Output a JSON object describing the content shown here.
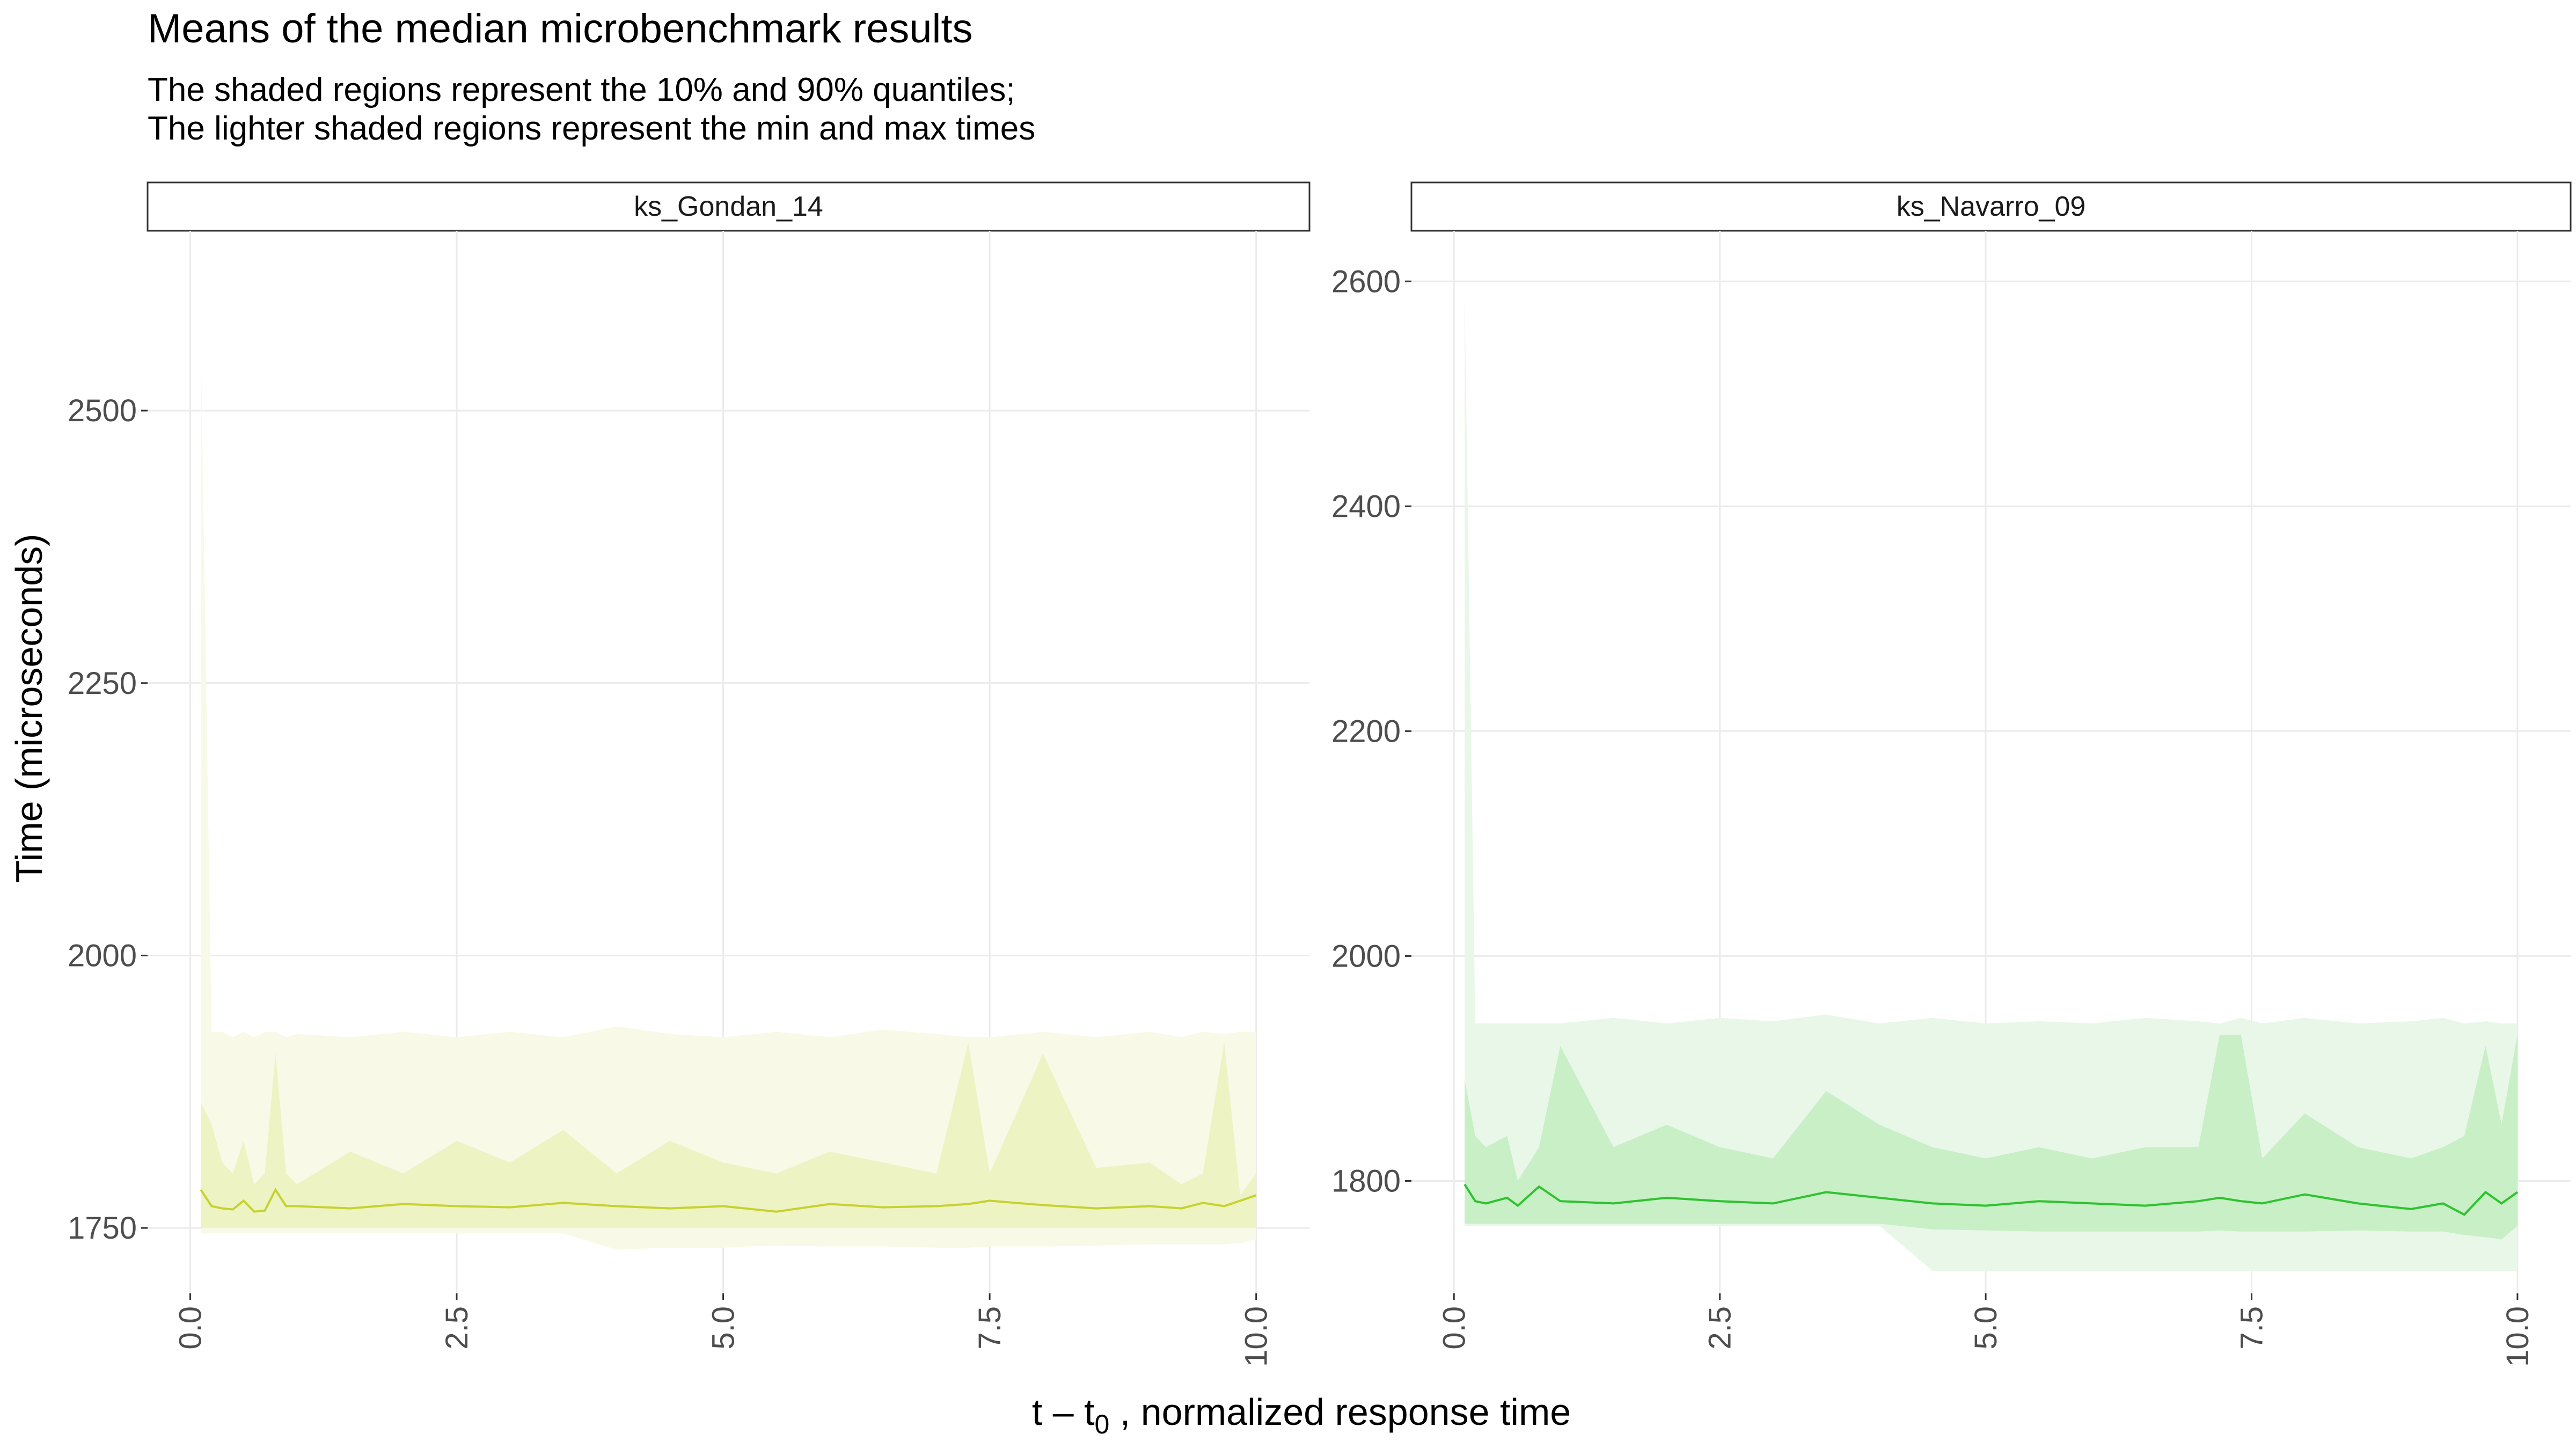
{
  "title": "Means of the median microbenchmark results",
  "subtitle_lines": [
    "The shaded regions represent the 10% and 90% quantiles;",
    "The lighter shaded regions represent the min and max times"
  ],
  "x_axis_label_prefix": "t – t",
  "x_axis_label_subscript": "0",
  "x_axis_label_suffix": " , normalized response time",
  "chart_data": {
    "type": "area",
    "ylabel": "Time (microseconds)",
    "xlabel": "t – t0 , normalized response time",
    "grid": true,
    "legend": "none",
    "facets": [
      {
        "strip": "ks_Gondan_14",
        "color_line": "#c6d22e",
        "color_band_inner": "#eef3c4",
        "color_band_outer": "#f8f9e6",
        "xlim": [
          -0.4,
          10.5
        ],
        "ylim": [
          1690,
          2665
        ],
        "xticks": [
          0,
          2.5,
          5,
          7.5,
          10
        ],
        "xtick_labels": [
          "0.0",
          "2.5",
          "5.0",
          "7.5",
          "10.0"
        ],
        "yticks": [
          1750,
          2000,
          2250,
          2500
        ],
        "ytick_labels": [
          "1750",
          "2000",
          "2250",
          "2500"
        ],
        "x": [
          0.1,
          0.2,
          0.3,
          0.4,
          0.5,
          0.6,
          0.7,
          0.8,
          0.9,
          1.0,
          1.5,
          2.0,
          2.5,
          3.0,
          3.5,
          4.0,
          4.5,
          5.0,
          5.5,
          6.0,
          6.5,
          7.0,
          7.3,
          7.5,
          8.0,
          8.5,
          9.0,
          9.3,
          9.5,
          9.7,
          9.85,
          10.0
        ],
        "mean": [
          1785,
          1770,
          1768,
          1767,
          1775,
          1765,
          1766,
          1785,
          1770,
          1770,
          1768,
          1772,
          1770,
          1769,
          1773,
          1770,
          1768,
          1770,
          1765,
          1772,
          1769,
          1770,
          1772,
          1775,
          1771,
          1768,
          1770,
          1768,
          1773,
          1770,
          1775,
          1780
        ],
        "q10": [
          1750,
          1750,
          1750,
          1750,
          1750,
          1750,
          1750,
          1750,
          1750,
          1750,
          1750,
          1750,
          1750,
          1750,
          1750,
          1750,
          1750,
          1750,
          1750,
          1750,
          1750,
          1750,
          1750,
          1750,
          1750,
          1750,
          1750,
          1750,
          1750,
          1750,
          1750,
          1750
        ],
        "q90": [
          1865,
          1845,
          1810,
          1800,
          1830,
          1790,
          1800,
          1910,
          1800,
          1790,
          1820,
          1800,
          1830,
          1810,
          1840,
          1800,
          1830,
          1810,
          1800,
          1820,
          1810,
          1800,
          1920,
          1800,
          1910,
          1805,
          1810,
          1790,
          1800,
          1920,
          1780,
          1800
        ],
        "min": [
          1745,
          1745,
          1745,
          1745,
          1745,
          1745,
          1745,
          1745,
          1745,
          1745,
          1745,
          1745,
          1745,
          1745,
          1745,
          1730,
          1732,
          1732,
          1734,
          1733,
          1733,
          1732,
          1732,
          1733,
          1733,
          1734,
          1735,
          1735,
          1735,
          1735,
          1736,
          1740
        ],
        "max": [
          2560,
          1930,
          1930,
          1925,
          1930,
          1925,
          1930,
          1930,
          1925,
          1928,
          1925,
          1930,
          1925,
          1930,
          1925,
          1935,
          1928,
          1925,
          1930,
          1925,
          1932,
          1928,
          1925,
          1925,
          1930,
          1925,
          1930,
          1925,
          1930,
          1928,
          1930,
          1930
        ]
      },
      {
        "strip": "ks_Navarro_09",
        "color_line": "#2ec32e",
        "color_band_inner": "#c8efc6",
        "color_band_outer": "#e8f7e8",
        "xlim": [
          -0.4,
          10.5
        ],
        "ylim": [
          1700,
          2645
        ],
        "xticks": [
          0,
          2.5,
          5,
          7.5,
          10
        ],
        "xtick_labels": [
          "0.0",
          "2.5",
          "5.0",
          "7.5",
          "10.0"
        ],
        "yticks": [
          1800,
          2000,
          2200,
          2400,
          2600
        ],
        "ytick_labels": [
          "1800",
          "2000",
          "2200",
          "2400",
          "2600"
        ],
        "x": [
          0.1,
          0.2,
          0.3,
          0.5,
          0.6,
          0.8,
          1.0,
          1.5,
          2.0,
          2.5,
          3.0,
          3.5,
          4.0,
          4.5,
          5.0,
          5.5,
          6.0,
          6.5,
          7.0,
          7.2,
          7.4,
          7.6,
          8.0,
          8.5,
          9.0,
          9.3,
          9.5,
          9.7,
          9.85,
          10.0
        ],
        "mean": [
          1797,
          1782,
          1780,
          1785,
          1778,
          1795,
          1782,
          1780,
          1785,
          1782,
          1780,
          1790,
          1785,
          1780,
          1778,
          1782,
          1780,
          1778,
          1782,
          1785,
          1782,
          1780,
          1788,
          1780,
          1775,
          1780,
          1770,
          1790,
          1780,
          1790
        ],
        "q10": [
          1762,
          1762,
          1762,
          1762,
          1762,
          1762,
          1762,
          1762,
          1762,
          1762,
          1762,
          1762,
          1762,
          1757,
          1756,
          1755,
          1755,
          1755,
          1755,
          1756,
          1755,
          1755,
          1755,
          1756,
          1755,
          1755,
          1752,
          1750,
          1748,
          1760
        ],
        "q90": [
          1890,
          1840,
          1830,
          1840,
          1800,
          1830,
          1920,
          1830,
          1850,
          1830,
          1820,
          1880,
          1850,
          1830,
          1820,
          1830,
          1820,
          1830,
          1830,
          1930,
          1930,
          1820,
          1860,
          1830,
          1820,
          1830,
          1840,
          1920,
          1850,
          1930
        ],
        "min": [
          1760,
          1760,
          1760,
          1760,
          1760,
          1760,
          1760,
          1760,
          1760,
          1760,
          1760,
          1760,
          1760,
          1720,
          1720,
          1720,
          1720,
          1720,
          1720,
          1720,
          1720,
          1720,
          1720,
          1720,
          1720,
          1720,
          1720,
          1720,
          1720,
          1720
        ],
        "max": [
          2590,
          1940,
          1940,
          1940,
          1940,
          1940,
          1940,
          1945,
          1940,
          1945,
          1942,
          1948,
          1940,
          1945,
          1940,
          1942,
          1940,
          1945,
          1942,
          1940,
          1945,
          1940,
          1945,
          1940,
          1942,
          1945,
          1940,
          1942,
          1940,
          1940
        ]
      }
    ]
  }
}
